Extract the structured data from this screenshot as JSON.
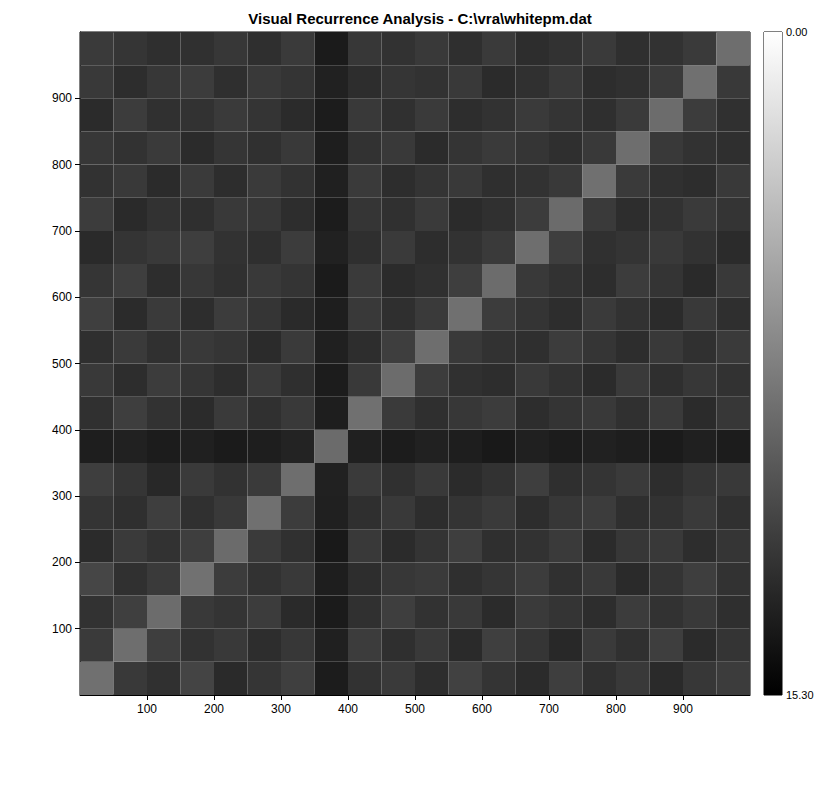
{
  "chart_data": {
    "type": "heatmap",
    "title": "Visual Recurrence Analysis - C:\\vra\\whitepm.dat",
    "xlim": [
      0,
      1000
    ],
    "ylim": [
      0,
      1000
    ],
    "xticks": [
      100,
      200,
      300,
      400,
      500,
      600,
      700,
      800,
      900
    ],
    "yticks": [
      100,
      200,
      300,
      400,
      500,
      600,
      700,
      800,
      900
    ],
    "grid": false,
    "x_edges": [
      0,
      50,
      100,
      150,
      200,
      250,
      300,
      350,
      400,
      450,
      500,
      550,
      600,
      650,
      700,
      750,
      800,
      850,
      900,
      950,
      1000
    ],
    "y_edges": [
      0,
      50,
      100,
      150,
      200,
      250,
      300,
      350,
      400,
      450,
      500,
      550,
      600,
      650,
      700,
      750,
      800,
      850,
      900,
      950,
      1000
    ],
    "cells": [
      [
        8.6,
        11.9,
        12.4,
        11.2,
        12.8,
        12.1,
        11.5,
        13.6,
        12.3,
        11.8,
        12.6,
        11.4,
        12.2,
        12.7,
        11.6,
        12.4,
        11.9,
        12.8,
        12.0,
        11.7
      ],
      [
        11.8,
        8.7,
        11.6,
        12.3,
        11.9,
        12.6,
        12.0,
        13.4,
        11.7,
        12.5,
        11.9,
        12.8,
        11.5,
        12.1,
        12.9,
        11.8,
        12.4,
        11.6,
        12.7,
        12.2
      ],
      [
        12.3,
        11.5,
        8.8,
        11.9,
        12.2,
        11.7,
        12.8,
        13.7,
        12.4,
        11.6,
        12.3,
        11.9,
        12.7,
        11.8,
        12.2,
        12.6,
        11.7,
        12.3,
        11.9,
        12.5
      ],
      [
        11.1,
        12.4,
        11.8,
        8.5,
        11.7,
        12.3,
        11.9,
        13.5,
        12.6,
        12.0,
        11.8,
        12.5,
        12.1,
        11.7,
        12.4,
        11.9,
        12.8,
        12.2,
        11.6,
        12.3
      ],
      [
        12.7,
        11.8,
        12.3,
        11.6,
        8.9,
        11.8,
        12.4,
        13.8,
        11.9,
        12.7,
        12.2,
        11.6,
        12.5,
        12.3,
        11.8,
        12.7,
        12.0,
        11.9,
        12.6,
        12.1
      ],
      [
        12.2,
        12.5,
        11.6,
        12.4,
        11.9,
        8.6,
        11.7,
        13.4,
        12.5,
        11.9,
        12.6,
        12.2,
        11.8,
        12.6,
        12.0,
        11.7,
        12.5,
        12.3,
        11.8,
        12.4
      ],
      [
        11.6,
        12.1,
        12.9,
        11.8,
        12.3,
        11.8,
        8.7,
        13.3,
        11.8,
        12.4,
        11.9,
        12.7,
        12.3,
        11.6,
        12.5,
        12.2,
        11.8,
        12.6,
        12.1,
        11.9
      ],
      [
        13.5,
        13.3,
        13.6,
        13.4,
        13.7,
        13.5,
        13.2,
        8.9,
        13.4,
        13.6,
        13.3,
        13.5,
        13.8,
        13.4,
        13.6,
        13.3,
        13.5,
        13.7,
        13.4,
        13.6
      ],
      [
        12.4,
        11.6,
        12.3,
        12.7,
        11.8,
        12.4,
        11.9,
        13.5,
        8.6,
        11.8,
        12.5,
        12.0,
        11.7,
        12.6,
        12.2,
        11.9,
        12.4,
        11.8,
        12.7,
        12.0
      ],
      [
        11.9,
        12.6,
        11.7,
        12.1,
        12.6,
        11.8,
        12.5,
        13.6,
        11.9,
        8.8,
        11.7,
        12.4,
        12.6,
        11.9,
        12.3,
        12.7,
        11.8,
        12.5,
        12.0,
        12.3
      ],
      [
        12.5,
        11.8,
        12.4,
        11.9,
        12.1,
        12.7,
        11.8,
        13.4,
        12.6,
        11.6,
        8.7,
        11.9,
        12.3,
        12.5,
        11.7,
        12.1,
        12.6,
        11.9,
        12.4,
        11.8
      ],
      [
        11.5,
        12.7,
        11.8,
        12.6,
        11.7,
        12.1,
        12.8,
        13.5,
        11.9,
        12.5,
        11.8,
        8.6,
        11.7,
        12.2,
        12.6,
        11.8,
        12.3,
        12.7,
        11.9,
        12.5
      ],
      [
        12.1,
        11.6,
        12.6,
        12.0,
        12.4,
        11.9,
        12.2,
        13.7,
        11.8,
        12.7,
        12.4,
        11.6,
        8.8,
        11.9,
        12.3,
        12.6,
        11.7,
        12.2,
        12.8,
        11.9
      ],
      [
        12.8,
        12.2,
        11.9,
        11.6,
        12.3,
        12.5,
        11.7,
        13.3,
        12.5,
        11.8,
        12.6,
        12.3,
        11.8,
        8.7,
        11.6,
        12.4,
        12.2,
        11.9,
        12.3,
        12.7
      ],
      [
        11.7,
        12.8,
        12.3,
        12.5,
        11.9,
        12.0,
        12.6,
        13.6,
        12.1,
        12.4,
        11.8,
        12.7,
        12.4,
        11.7,
        8.9,
        11.8,
        12.6,
        12.3,
        11.8,
        12.2
      ],
      [
        12.3,
        11.9,
        12.7,
        11.8,
        12.6,
        11.8,
        12.3,
        13.4,
        11.8,
        12.6,
        12.2,
        11.9,
        12.5,
        12.3,
        11.9,
        8.6,
        11.8,
        12.4,
        12.6,
        11.9
      ],
      [
        12.0,
        12.3,
        11.8,
        12.7,
        12.1,
        12.4,
        11.9,
        13.5,
        12.3,
        11.9,
        12.7,
        12.2,
        11.8,
        12.1,
        12.5,
        11.9,
        8.7,
        11.9,
        12.3,
        12.5
      ],
      [
        12.7,
        11.7,
        12.4,
        12.3,
        11.8,
        12.2,
        12.7,
        13.6,
        11.9,
        12.4,
        11.8,
        12.6,
        12.3,
        11.8,
        12.2,
        12.5,
        11.8,
        8.8,
        11.7,
        12.4
      ],
      [
        11.9,
        12.6,
        12.0,
        11.7,
        12.5,
        11.9,
        12.2,
        13.3,
        12.6,
        12.1,
        12.3,
        11.9,
        12.7,
        12.4,
        11.9,
        12.6,
        12.4,
        11.8,
        8.6,
        11.9
      ],
      [
        11.8,
        12.1,
        12.5,
        12.4,
        12.0,
        12.5,
        11.8,
        13.7,
        12.0,
        12.3,
        11.9,
        12.5,
        11.8,
        12.6,
        12.3,
        11.8,
        12.5,
        12.3,
        11.8,
        8.7
      ]
    ],
    "colorbar": {
      "range": [
        0,
        15.3
      ],
      "ticks": [
        {
          "value": 0,
          "label": "0.00"
        },
        {
          "value": 15.3,
          "label": "15.30"
        }
      ]
    }
  }
}
